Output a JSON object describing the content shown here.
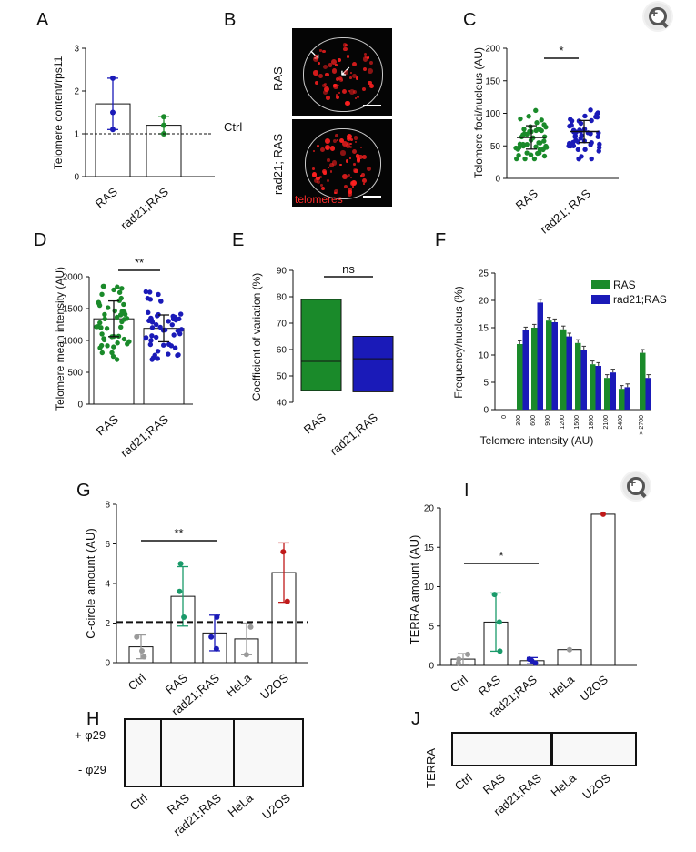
{
  "panels": {
    "A": "A",
    "B": "B",
    "C": "C",
    "D": "D",
    "E": "E",
    "F": "F",
    "G": "G",
    "H": "H",
    "I": "I",
    "J": "J"
  },
  "colors": {
    "ras": "#1a8a2a",
    "rad21": "#1a1ab8",
    "ctrl": "#9a9a9a",
    "u2os": "#c01a1a",
    "teal": "#1a9a6a"
  },
  "icons": [
    "zoom-in-icon"
  ],
  "microscopy": {
    "row1_label": "RAS",
    "row2_label": "rad21; RAS",
    "stain_label": "telomeres"
  },
  "chart_data": [
    {
      "id": "A",
      "type": "bar",
      "categories": [
        "RAS",
        "rad21;RAS"
      ],
      "values": [
        1.7,
        1.2
      ],
      "errors": [
        0.6,
        0.2
      ],
      "points": [
        [
          2.3,
          1.5,
          1.1
        ],
        [
          1.4,
          1.2,
          1.0
        ]
      ],
      "ylabel": "Telomere content/rps11",
      "ylim": [
        0,
        3
      ],
      "yticks": [
        "0",
        "1",
        "2",
        "3"
      ],
      "reference_line": {
        "value": 1,
        "label": "Ctrl"
      }
    },
    {
      "id": "C",
      "type": "scatter",
      "categories": [
        "RAS",
        "rad21; RAS"
      ],
      "ylabel": "Telomere foci/nucleus (AU)",
      "ylim": [
        0,
        200
      ],
      "yticks": [
        "0",
        "50",
        "100",
        "150",
        "200"
      ],
      "means": [
        63,
        72
      ],
      "errors": [
        18,
        17
      ],
      "significance": "*"
    },
    {
      "id": "D",
      "type": "bar",
      "categories": [
        "RAS",
        "rad21;RAS"
      ],
      "values": [
        1340,
        1190
      ],
      "errors": [
        280,
        210
      ],
      "ylabel": "Telomere mean intensity (AU)",
      "ylim": [
        0,
        2000
      ],
      "yticks": [
        "0",
        "500",
        "1000",
        "1500",
        "2000"
      ],
      "significance": "**"
    },
    {
      "id": "E",
      "type": "bar",
      "categories": [
        "RAS",
        "rad21;RAS"
      ],
      "boxes": [
        {
          "min": 44.5,
          "median": 55.5,
          "max": 79
        },
        {
          "min": 44,
          "median": 56.5,
          "max": 65
        }
      ],
      "ylabel": "Coefficient of variation  (%)",
      "ylim": [
        40,
        90
      ],
      "yticks": [
        "40",
        "50",
        "60",
        "70",
        "80",
        "90"
      ],
      "significance": "ns"
    },
    {
      "id": "F",
      "type": "bar",
      "categories": [
        "0",
        "300",
        "600",
        "900",
        "1200",
        "1500",
        "1800",
        "2100",
        "2400",
        "> 2700"
      ],
      "series": [
        {
          "name": "RAS",
          "values": [
            0,
            12,
            15,
            16.3,
            14.7,
            12.2,
            8.3,
            5.8,
            3.8,
            10.4
          ]
        },
        {
          "name": "rad21;RAS",
          "values": [
            0,
            14.5,
            19.6,
            16,
            13.4,
            11,
            8,
            6.8,
            4.1,
            5.8
          ]
        }
      ],
      "ylabel": "Frequency/nucleus (%)",
      "xlabel": "Telomere intensity (AU)",
      "ylim": [
        0,
        25
      ],
      "yticks": [
        "0",
        "5",
        "10",
        "15",
        "20",
        "25"
      ],
      "legend": "top-right"
    },
    {
      "id": "G",
      "type": "bar",
      "categories": [
        "Ctrl",
        "RAS",
        "rad21;RAS",
        "HeLa",
        "U2OS"
      ],
      "values": [
        0.8,
        3.35,
        1.5,
        1.2,
        4.55
      ],
      "errors": [
        0.6,
        1.5,
        0.9,
        0.8,
        1.5
      ],
      "ylabel": "C-circle amount (AU)",
      "ylim": [
        0,
        8
      ],
      "yticks": [
        "0",
        "2",
        "4",
        "6",
        "8"
      ],
      "threshold": 2.05,
      "significance": "**"
    },
    {
      "id": "I",
      "type": "bar",
      "categories": [
        "Ctrl",
        "RAS",
        "rad21;RAS",
        "HeLa",
        "U2OS"
      ],
      "values": [
        0.8,
        5.5,
        0.6,
        2.0,
        19.2
      ],
      "errors": [
        0.7,
        3.7,
        0.4,
        0,
        0
      ],
      "ylabel": "TERRA amount (AU)",
      "ylim": [
        0,
        20
      ],
      "yticks": [
        "0",
        "5",
        "10",
        "15",
        "20"
      ],
      "significance": "*"
    }
  ],
  "blots": {
    "H": {
      "row_labels": [
        "+ φ29",
        "- φ29"
      ],
      "categories": [
        "Ctrl",
        "RAS",
        "rad21;RAS",
        "HeLa",
        "U2OS"
      ]
    },
    "J": {
      "row_label": "TERRA",
      "categories": [
        "Ctrl",
        "RAS",
        "rad21;RAS",
        "HeLa",
        "U2OS"
      ]
    }
  }
}
